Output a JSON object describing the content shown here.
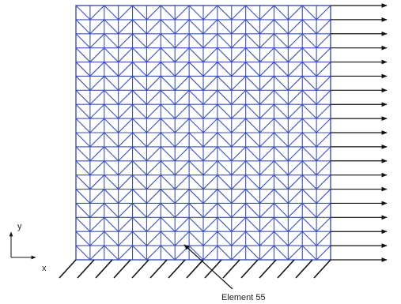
{
  "diagram": {
    "mesh": {
      "divisions": 18,
      "line_color": "#3b4fb8"
    },
    "load": {
      "arrow_count": 19,
      "color": "#111111"
    },
    "support": {
      "hatch_count": 15,
      "color": "#111111"
    },
    "axes": {
      "x_label": "x",
      "y_label": "y"
    },
    "annotation": {
      "text": "Element 55"
    }
  }
}
